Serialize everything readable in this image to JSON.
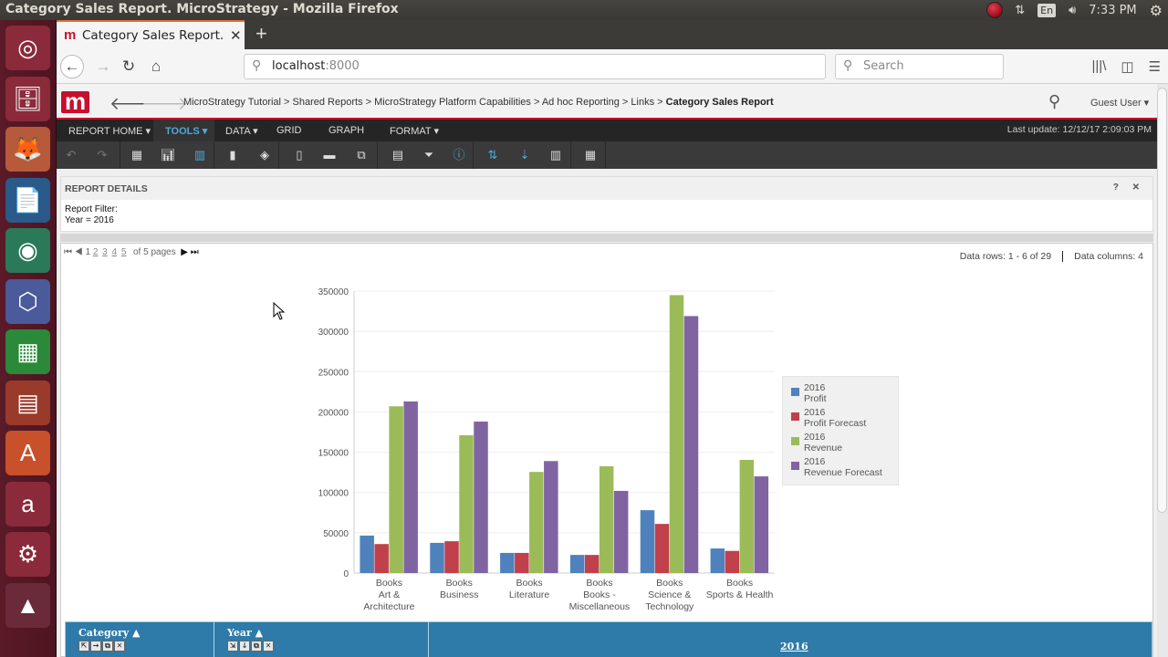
{
  "os": {
    "window_title": "Category Sales Report. MicroStrategy - Mozilla Firefox",
    "clock": "7:33 PM",
    "keyboard": "En",
    "launcher": [
      {
        "name": "ubuntu-dash",
        "glyph": "◎",
        "bg": "#8a2a3a"
      },
      {
        "name": "files",
        "glyph": "🗄",
        "bg": "#8a2a3a"
      },
      {
        "name": "firefox",
        "glyph": "🦊",
        "bg": "#b65a3a"
      },
      {
        "name": "libreoffice-writer",
        "glyph": "📄",
        "bg": "#2a5a8a"
      },
      {
        "name": "webcam",
        "glyph": "◉",
        "bg": "#2a7a5a"
      },
      {
        "name": "virtualbox",
        "glyph": "⬡",
        "bg": "#4a5a9a"
      },
      {
        "name": "libreoffice-calc",
        "glyph": "▦",
        "bg": "#2a8a3a"
      },
      {
        "name": "libreoffice-impress",
        "glyph": "▤",
        "bg": "#9a3a2a"
      },
      {
        "name": "software-center",
        "glyph": "A",
        "bg": "#c8502a"
      },
      {
        "name": "amazon",
        "glyph": "a",
        "bg": "#8a2a3a"
      },
      {
        "name": "system-settings",
        "glyph": "⚙",
        "bg": "#8a2a3a"
      },
      {
        "name": "vlc-stack",
        "glyph": "▲",
        "bg": "#6a2a3a"
      }
    ]
  },
  "browser": {
    "tab_title": "Category Sales Report. M",
    "tab_favicon": "m",
    "url_host": "localhost",
    "url_port": ":8000",
    "search_placeholder": "Search"
  },
  "app": {
    "breadcrumb": [
      "MicroStrategy Tutorial",
      "> Shared Reports",
      "> MicroStrategy Platform Capabilities",
      "> Ad hoc Reporting",
      "> Links",
      ">"
    ],
    "current_report": "Category Sales Report",
    "user": "Guest User ▾",
    "menus": [
      {
        "label": "REPORT HOME ▾",
        "active": false
      },
      {
        "label": "TOOLS ▾",
        "active": true
      },
      {
        "label": "DATA ▾",
        "active": false
      },
      {
        "label": "GRID",
        "active": false
      },
      {
        "label": "GRAPH",
        "active": false
      },
      {
        "label": "FORMAT ▾",
        "active": false
      }
    ],
    "last_update": "Last update: 12/12/17 2:09:03 PM",
    "toolbar_icons": [
      "undo-icon",
      "redo-icon",
      "grid-view-icon",
      "graph-view-icon",
      "grid-graph-view-icon",
      "page-icon",
      "eraser-icon",
      "report-objects-icon",
      "page-by-icon",
      "copy-icon",
      "subtotals-icon",
      "filter-icon",
      "info-icon",
      "pivot-icon",
      "sort-icon",
      "chart-format-icon",
      "grid-help-icon"
    ],
    "report_details": {
      "title": "REPORT DETAILS",
      "help": "?",
      "close": "✕",
      "filter_label": "Report Filter:",
      "filter_value": "Year = 2016"
    },
    "pager": {
      "current": "1",
      "pages": [
        "2",
        "3",
        "4",
        "5"
      ],
      "of_text": "of 5 pages"
    },
    "rows_info": "Data rows: 1 - 6 of 29",
    "cols_info": "Data columns: 4",
    "grid_header": {
      "col1": "Category",
      "col2": "Year",
      "year_value": "2016"
    }
  },
  "chart_data": {
    "type": "bar",
    "title": "",
    "xlabel": "",
    "ylabel": "",
    "ylim": [
      0,
      350000
    ],
    "yticks": [
      0,
      50000,
      100000,
      150000,
      200000,
      250000,
      300000,
      350000
    ],
    "grid": true,
    "legend_position": "right",
    "categories": [
      [
        "Books",
        "Art &",
        "Architecture"
      ],
      [
        "Books",
        "Business"
      ],
      [
        "Books",
        "Literature"
      ],
      [
        "Books",
        "Books -",
        "Miscellaneous"
      ],
      [
        "Books",
        "Science &",
        "Technology"
      ],
      [
        "Books",
        "Sports & Health"
      ]
    ],
    "series": [
      {
        "name": "2016 Profit",
        "label1": "2016",
        "label2": "Profit",
        "color": "#4f81bd",
        "values": [
          46500,
          37500,
          25000,
          22500,
          78000,
          30500
        ]
      },
      {
        "name": "2016 Profit Forecast",
        "label1": "2016",
        "label2": "Profit Forecast",
        "color": "#c0404c",
        "values": [
          36000,
          39500,
          25000,
          22500,
          61000,
          27500
        ]
      },
      {
        "name": "2016 Revenue",
        "label1": "2016",
        "label2": "Revenue",
        "color": "#9bbb59",
        "values": [
          207000,
          171000,
          125500,
          132500,
          345000,
          140500
        ]
      },
      {
        "name": "2016 Revenue Forecast",
        "label1": "2016",
        "label2": "Revenue Forecast",
        "color": "#8064a2",
        "values": [
          213000,
          188000,
          139000,
          102000,
          319000,
          120000
        ]
      }
    ]
  }
}
